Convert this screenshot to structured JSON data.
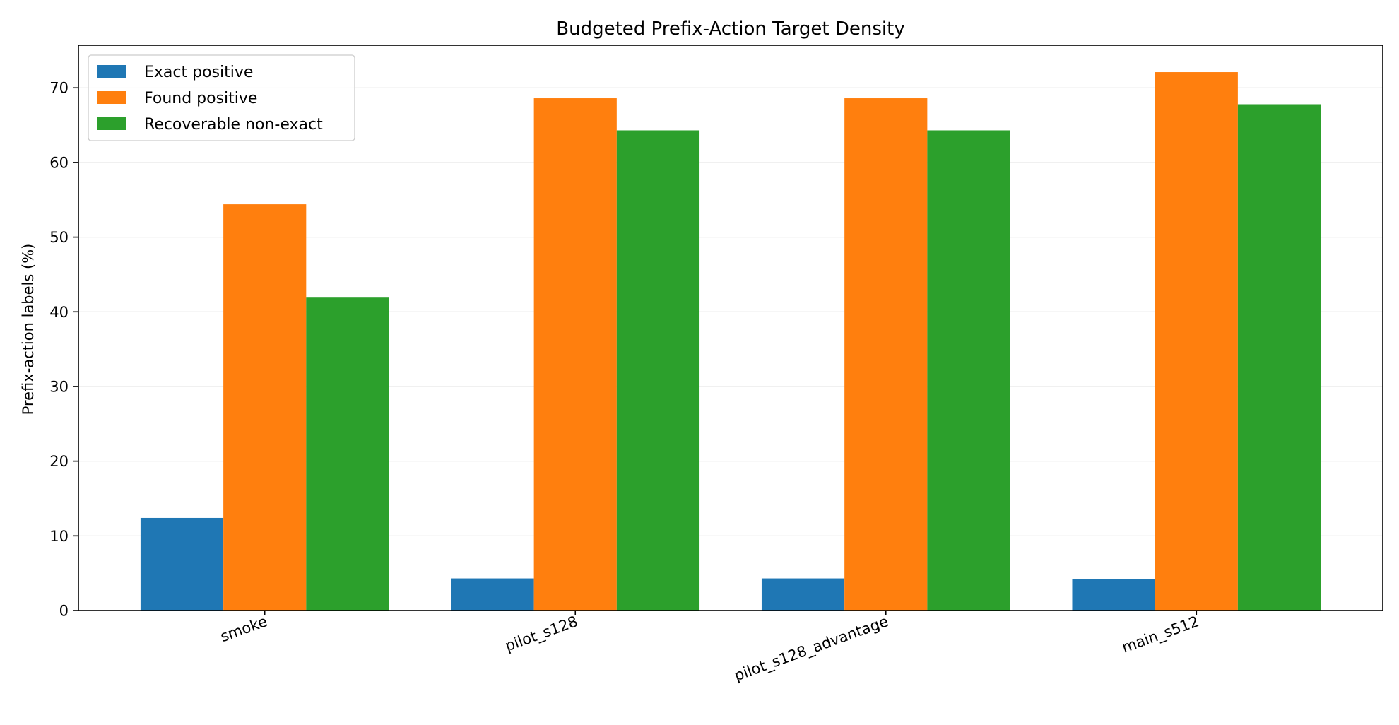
{
  "chart_data": {
    "type": "bar",
    "title": "Budgeted Prefix-Action Target Density",
    "xlabel": "",
    "ylabel": "Prefix-action labels (%)",
    "categories": [
      "smoke",
      "pilot_s128",
      "pilot_s128_advantage",
      "main_s512"
    ],
    "series": [
      {
        "name": "Exact positive",
        "color": "#1f77b4",
        "values": [
          12.4,
          4.3,
          4.3,
          4.2
        ]
      },
      {
        "name": "Found positive",
        "color": "#ff7f0e",
        "values": [
          54.4,
          68.6,
          68.6,
          72.1
        ]
      },
      {
        "name": "Recoverable non-exact",
        "color": "#2ca02c",
        "values": [
          41.9,
          64.3,
          64.3,
          67.8
        ]
      }
    ],
    "ylim": [
      0,
      75.7
    ],
    "yticks": [
      0,
      10,
      20,
      30,
      40,
      50,
      60,
      70
    ],
    "grid": "horizontal",
    "legend_position": "top-left",
    "xtick_rotation": "rotated"
  }
}
